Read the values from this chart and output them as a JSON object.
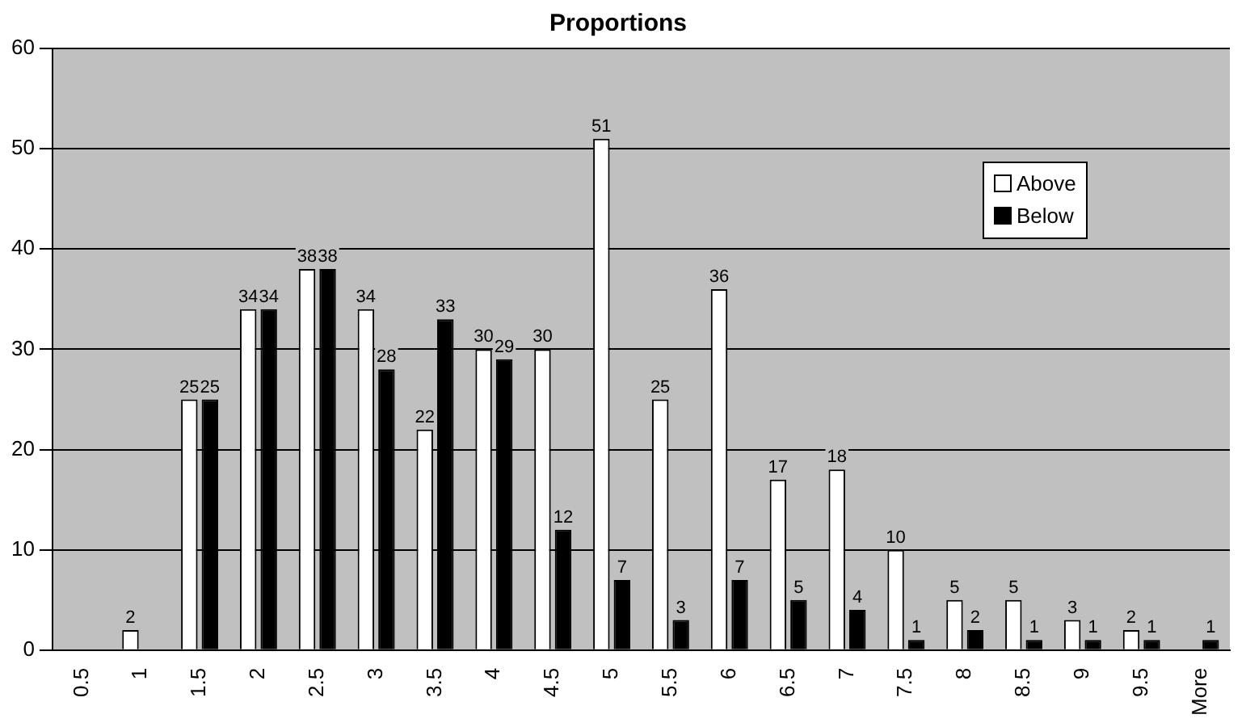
{
  "chart_data": {
    "type": "bar",
    "title": "Proportions",
    "categories": [
      "0.5",
      "1",
      "1.5",
      "2",
      "2.5",
      "3",
      "3.5",
      "4",
      "4.5",
      "5",
      "5.5",
      "6",
      "6.5",
      "7",
      "7.5",
      "8",
      "8.5",
      "9",
      "9.5",
      "More"
    ],
    "series": [
      {
        "name": "Above",
        "color": "#ffffff",
        "values": [
          null,
          2,
          25,
          34,
          38,
          34,
          22,
          30,
          30,
          51,
          25,
          36,
          17,
          18,
          10,
          5,
          5,
          3,
          2,
          null
        ]
      },
      {
        "name": "Below",
        "color": "#000000",
        "values": [
          null,
          null,
          25,
          34,
          38,
          28,
          33,
          29,
          12,
          7,
          3,
          7,
          5,
          4,
          1,
          2,
          1,
          1,
          1,
          1
        ]
      }
    ],
    "ylim": [
      0,
      60
    ],
    "yticks": [
      0,
      10,
      20,
      30,
      40,
      50,
      60
    ],
    "grid": "y",
    "legend": "top right",
    "data_labels": true
  }
}
